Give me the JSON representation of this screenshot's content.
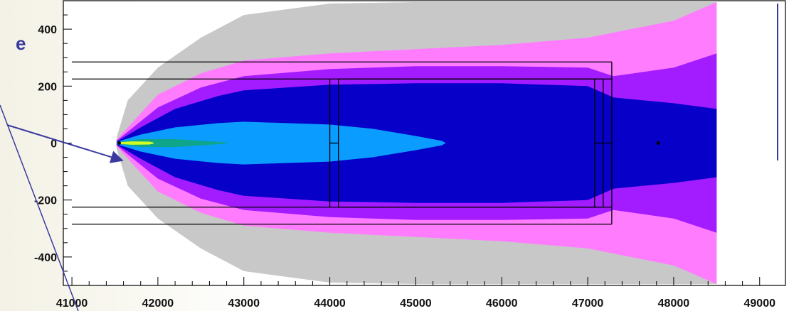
{
  "chart_data": {
    "type": "heatmap",
    "title": "",
    "xlabel": "",
    "ylabel": "",
    "xlim": [
      40900,
      49300
    ],
    "ylim": [
      -500,
      500
    ],
    "x_ticks": [
      41000,
      42000,
      43000,
      44000,
      45000,
      46000,
      47000,
      48000,
      49000
    ],
    "y_ticks": [
      -400,
      -200,
      0,
      200,
      400
    ],
    "x_tick_labels": [
      "41000",
      "42000",
      "43000",
      "44000",
      "45000",
      "46000",
      "47000",
      "48000",
      "49000"
    ],
    "y_tick_labels": [
      "-400",
      "-200",
      "0",
      "200",
      "400"
    ],
    "colors": {
      "grey": "#c8c8c8",
      "pink": "#ff7cff",
      "violet": "#a31bff",
      "navy": "#0600c8",
      "skyblue": "#0a9cff",
      "teal": "#0fa58a",
      "yellow": "#cfff26"
    },
    "zones": [
      {
        "name": "grey",
        "color": "#c8c8c8",
        "x": [
          41520,
          41650,
          42000,
          42500,
          43000,
          44000,
          45000,
          46000,
          47000,
          48000,
          48500
        ],
        "half_width": [
          20,
          150,
          265,
          370,
          450,
          490,
          495,
          495,
          495,
          495,
          495
        ]
      },
      {
        "name": "pink",
        "color": "#ff7cff",
        "x": [
          41520,
          42000,
          42500,
          43000,
          44000,
          45000,
          46000,
          47000,
          48000,
          48500
        ],
        "half_width": [
          12,
          170,
          245,
          290,
          315,
          330,
          345,
          370,
          430,
          495
        ]
      },
      {
        "name": "violet",
        "color": "#a31bff",
        "x": [
          41520,
          42000,
          42500,
          43000,
          44000,
          45000,
          46000,
          47000,
          47300,
          48000,
          48500
        ],
        "half_width": [
          8,
          125,
          195,
          235,
          260,
          270,
          270,
          265,
          235,
          265,
          315
        ]
      },
      {
        "name": "navy",
        "color": "#0600c8",
        "x": [
          41520,
          41800,
          42200,
          42700,
          43000,
          44000,
          45000,
          46000,
          47000,
          47300,
          48000,
          48500
        ],
        "half_width": [
          5,
          55,
          120,
          165,
          185,
          205,
          210,
          210,
          200,
          160,
          140,
          120
        ]
      },
      {
        "name": "skyblue",
        "color": "#0a9cff",
        "x": [
          41520,
          41800,
          42200,
          42700,
          43000,
          44000,
          44500,
          45000,
          45300,
          45350
        ],
        "half_width": [
          4,
          30,
          55,
          70,
          75,
          65,
          50,
          25,
          8,
          0
        ]
      },
      {
        "name": "teal",
        "color": "#0fa58a",
        "x": [
          41540,
          41800,
          42200,
          42500,
          42800
        ],
        "half_width": [
          3,
          14,
          14,
          8,
          2
        ]
      },
      {
        "name": "yellow",
        "color": "#cfff26",
        "x": [
          41540,
          41700,
          41900,
          41950
        ],
        "half_width": [
          3,
          6,
          5,
          2
        ]
      }
    ],
    "overlay_lines": [
      {
        "x": [
          41000,
          47280
        ],
        "y": [
          285,
          285
        ]
      },
      {
        "x": [
          41000,
          47280
        ],
        "y": [
          -285,
          -285
        ]
      },
      {
        "x": [
          41000,
          47280
        ],
        "y": [
          225,
          225
        ]
      },
      {
        "x": [
          41000,
          47280
        ],
        "y": [
          -225,
          -225
        ]
      },
      {
        "x": [
          47280,
          47280
        ],
        "y": [
          -285,
          285
        ]
      },
      {
        "x": [
          44000,
          44000
        ],
        "y": [
          -225,
          225
        ]
      },
      {
        "x": [
          44100,
          44100
        ],
        "y": [
          -225,
          225
        ]
      },
      {
        "x": [
          44100,
          47160
        ],
        "y": [
          225,
          225
        ]
      },
      {
        "x": [
          44100,
          47160
        ],
        "y": [
          -225,
          -225
        ]
      },
      {
        "x": [
          47080,
          47080
        ],
        "y": [
          -225,
          225
        ]
      },
      {
        "x": [
          47180,
          47180
        ],
        "y": [
          -225,
          225
        ]
      },
      {
        "x": [
          44000,
          44100
        ],
        "y": [
          0,
          0
        ]
      },
      {
        "x": [
          47080,
          47280
        ],
        "y": [
          0,
          0
        ]
      }
    ],
    "markers": [
      {
        "x": 41550,
        "y": 0
      },
      {
        "x": 47820,
        "y": 0
      }
    ],
    "grid": false,
    "legend": "none"
  },
  "page": {
    "cut_letter": "e"
  }
}
